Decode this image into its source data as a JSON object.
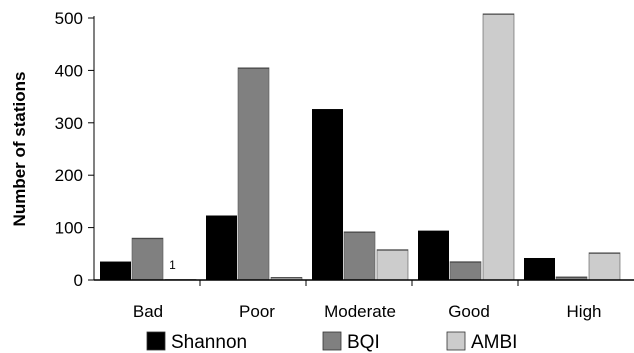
{
  "chart_data": {
    "type": "bar",
    "title": "",
    "xlabel": "",
    "ylabel": "Number of stations",
    "ylim": [
      0,
      500
    ],
    "yticks": [
      0,
      100,
      200,
      300,
      400,
      500
    ],
    "categories": [
      "Bad",
      "Poor",
      "Moderate",
      "Good",
      "High"
    ],
    "series": [
      {
        "name": "Shannon",
        "color": "#000000",
        "values": [
          35,
          123,
          326,
          94,
          42
        ]
      },
      {
        "name": "BQI",
        "color": "#808080",
        "values": [
          80,
          405,
          92,
          35,
          6
        ]
      },
      {
        "name": "AMBI",
        "color": "#cccccc",
        "values": [
          1,
          5,
          58,
          508,
          52
        ]
      }
    ],
    "annotations": [
      {
        "text": "1",
        "category": "Bad",
        "series": "AMBI"
      }
    ],
    "legend": "bottom",
    "grid": false
  }
}
